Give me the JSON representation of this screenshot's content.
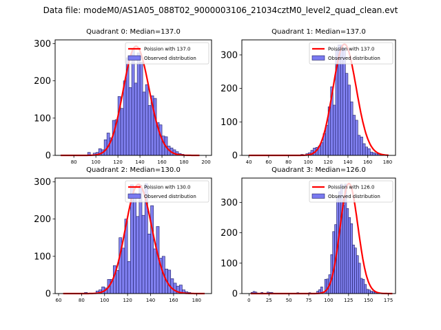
{
  "figure": {
    "suptitle": "Data file: modeM0/AS1A05_088T02_9000003106_21034cztM0_level2_quad_clean.evt"
  },
  "colors": {
    "bar_fill": "#7a7af0",
    "bar_edge": "#1a1a60",
    "poisson_line": "#ff0000"
  },
  "chart_data": [
    {
      "type": "bar",
      "title": "Quadrant 0: Median=137.0",
      "xlabel": "",
      "ylabel": "",
      "xlim": [
        63,
        205
      ],
      "ylim": [
        0,
        310
      ],
      "xticks": [
        80,
        100,
        120,
        140,
        160,
        180,
        200
      ],
      "yticks": [
        0,
        100,
        200,
        300
      ],
      "grid": false,
      "legend": {
        "placement": "top-right",
        "entries": [
          "Poission with 137.0",
          "Observed distribution"
        ]
      },
      "bin_width": 2.5,
      "bins_start": [
        92.5,
        97.5,
        100,
        102.5,
        105,
        107.5,
        110,
        112.5,
        115,
        117.5,
        120,
        122.5,
        125,
        127.5,
        130,
        132.5,
        135,
        137.5,
        140,
        142.5,
        145,
        147.5,
        150,
        152.5,
        155,
        157.5,
        160,
        162.5,
        165,
        167.5,
        170,
        172.5,
        175,
        177.5
      ],
      "values": [
        8,
        6,
        8,
        18,
        15,
        42,
        60,
        47,
        94,
        96,
        158,
        126,
        200,
        262,
        182,
        285,
        194,
        275,
        250,
        170,
        190,
        134,
        160,
        153,
        88,
        82,
        52,
        50,
        25,
        20,
        15,
        10,
        5,
        3
      ],
      "poisson_mean": 137.0,
      "poisson_peak": 293,
      "curve_x_range": [
        68,
        194
      ]
    },
    {
      "type": "bar",
      "title": "Quadrant 1: Median=137.0",
      "xlabel": "",
      "ylabel": "",
      "xlim": [
        33,
        188
      ],
      "ylim": [
        0,
        345
      ],
      "xticks": [
        40,
        60,
        80,
        100,
        120,
        140,
        160,
        180
      ],
      "yticks": [
        0,
        100,
        200,
        300
      ],
      "grid": false,
      "legend": {
        "placement": "top-right",
        "entries": [
          "Poission with 137.0",
          "Observed distribution"
        ]
      },
      "bin_width": 2.5,
      "bins_start": [
        92.5,
        97.5,
        100,
        102.5,
        105,
        107.5,
        110,
        112.5,
        115,
        117.5,
        120,
        122.5,
        125,
        127.5,
        130,
        132.5,
        135,
        137.5,
        140,
        142.5,
        145,
        147.5,
        150,
        152.5,
        155,
        157.5,
        160,
        162.5,
        165,
        167.5,
        170,
        172.5,
        175,
        177.5
      ],
      "values": [
        3,
        5,
        8,
        15,
        22,
        24,
        28,
        38,
        65,
        90,
        145,
        205,
        150,
        315,
        330,
        330,
        320,
        245,
        210,
        160,
        120,
        105,
        60,
        55,
        35,
        25,
        20,
        10,
        8,
        5,
        4,
        3,
        2,
        2
      ],
      "poisson_mean": 137.0,
      "poisson_peak": 332,
      "curve_x_range": [
        40,
        181
      ]
    },
    {
      "type": "bar",
      "title": "Quadrant 2: Median=130.0",
      "xlabel": "",
      "ylabel": "",
      "xlim": [
        57,
        193
      ],
      "ylim": [
        0,
        310
      ],
      "xticks": [
        60,
        80,
        100,
        120,
        140,
        160,
        180
      ],
      "yticks": [
        0,
        100,
        200,
        300
      ],
      "grid": false,
      "legend": {
        "placement": "top-right",
        "entries": [
          "Poission with 130.0",
          "Observed distribution"
        ]
      },
      "bin_width": 2.5,
      "bins_start": [
        82.5,
        92.5,
        95,
        97.5,
        100,
        102.5,
        105,
        107.5,
        110,
        112.5,
        115,
        117.5,
        120,
        122.5,
        125,
        127.5,
        130,
        132.5,
        135,
        137.5,
        140,
        142.5,
        145,
        147.5,
        150,
        152.5,
        155,
        157.5,
        160,
        162.5,
        165,
        167.5,
        170,
        172.5
      ],
      "values": [
        3,
        7,
        10,
        18,
        15,
        38,
        38,
        75,
        62,
        150,
        122,
        200,
        86,
        292,
        270,
        207,
        291,
        210,
        295,
        160,
        236,
        120,
        180,
        95,
        100,
        66,
        63,
        40,
        28,
        20,
        23,
        10,
        5,
        3
      ],
      "poisson_mean": 130.0,
      "poisson_peak": 293,
      "curve_x_range": [
        64,
        187
      ]
    },
    {
      "type": "bar",
      "title": "Quadrant 3: Median=126.0",
      "xlabel": "",
      "ylabel": "",
      "xlim": [
        -9,
        184
      ],
      "ylim": [
        0,
        380
      ],
      "xticks": [
        0,
        25,
        50,
        75,
        100,
        125,
        150,
        175
      ],
      "yticks": [
        0,
        100,
        200,
        300
      ],
      "grid": false,
      "legend": {
        "placement": "top-right",
        "entries": [
          "Poission with 126.0",
          "Observed distribution"
        ]
      },
      "bin_width": 2.5,
      "bins_start": [
        2.5,
        5,
        7.5,
        15,
        22.5,
        25,
        27.5,
        60,
        75,
        85,
        87.5,
        90,
        95,
        97.5,
        100,
        102.5,
        105,
        107.5,
        110,
        112.5,
        115,
        117.5,
        120,
        122.5,
        125,
        127.5,
        130,
        132.5,
        135,
        137.5,
        140,
        142.5,
        145,
        147.5,
        150,
        152.5,
        155,
        157.5,
        160,
        162.5,
        165,
        167.5,
        170,
        172.5
      ],
      "values": [
        4,
        7,
        5,
        4,
        5,
        4,
        4,
        3,
        3,
        8,
        13,
        22,
        47,
        48,
        62,
        128,
        204,
        227,
        315,
        335,
        360,
        290,
        360,
        280,
        250,
        230,
        160,
        150,
        125,
        100,
        50,
        47,
        30,
        14,
        12,
        8,
        6,
        4,
        3,
        2,
        2,
        1,
        1,
        1
      ],
      "poisson_mean": 126.0,
      "poisson_peak": 362,
      "curve_x_range": [
        2,
        180
      ]
    }
  ]
}
